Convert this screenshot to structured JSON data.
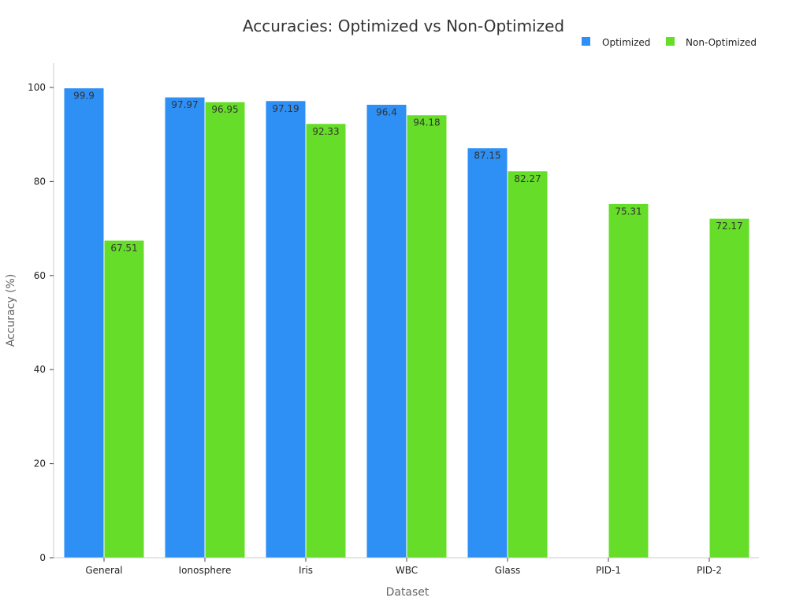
{
  "chart_data": {
    "type": "bar",
    "title": "Accuracies: Optimized vs Non-Optimized",
    "xlabel": "Dataset",
    "ylabel": "Accuracy (%)",
    "categories": [
      "General",
      "Ionosphere",
      "Iris",
      "WBC",
      "Glass",
      "PID-1",
      "PID-2"
    ],
    "ylim": [
      0,
      105
    ],
    "yticks": [
      0,
      20,
      40,
      60,
      80,
      100
    ],
    "grid": false,
    "legend_position": "top-right",
    "series": [
      {
        "name": "Optimized",
        "color": "#2e8ff5",
        "values": [
          99.9,
          97.97,
          97.19,
          96.4,
          87.15,
          null,
          null
        ],
        "labels": [
          "99.9",
          "97.97",
          "97.19",
          "96.4",
          "87.15",
          "",
          ""
        ]
      },
      {
        "name": "Non-Optimized",
        "color": "#66dd28",
        "values": [
          67.51,
          96.95,
          92.33,
          94.18,
          82.27,
          75.31,
          72.17
        ],
        "labels": [
          "67.51",
          "96.95",
          "92.33",
          "94.18",
          "82.27",
          "75.31",
          "72.17"
        ]
      }
    ]
  }
}
